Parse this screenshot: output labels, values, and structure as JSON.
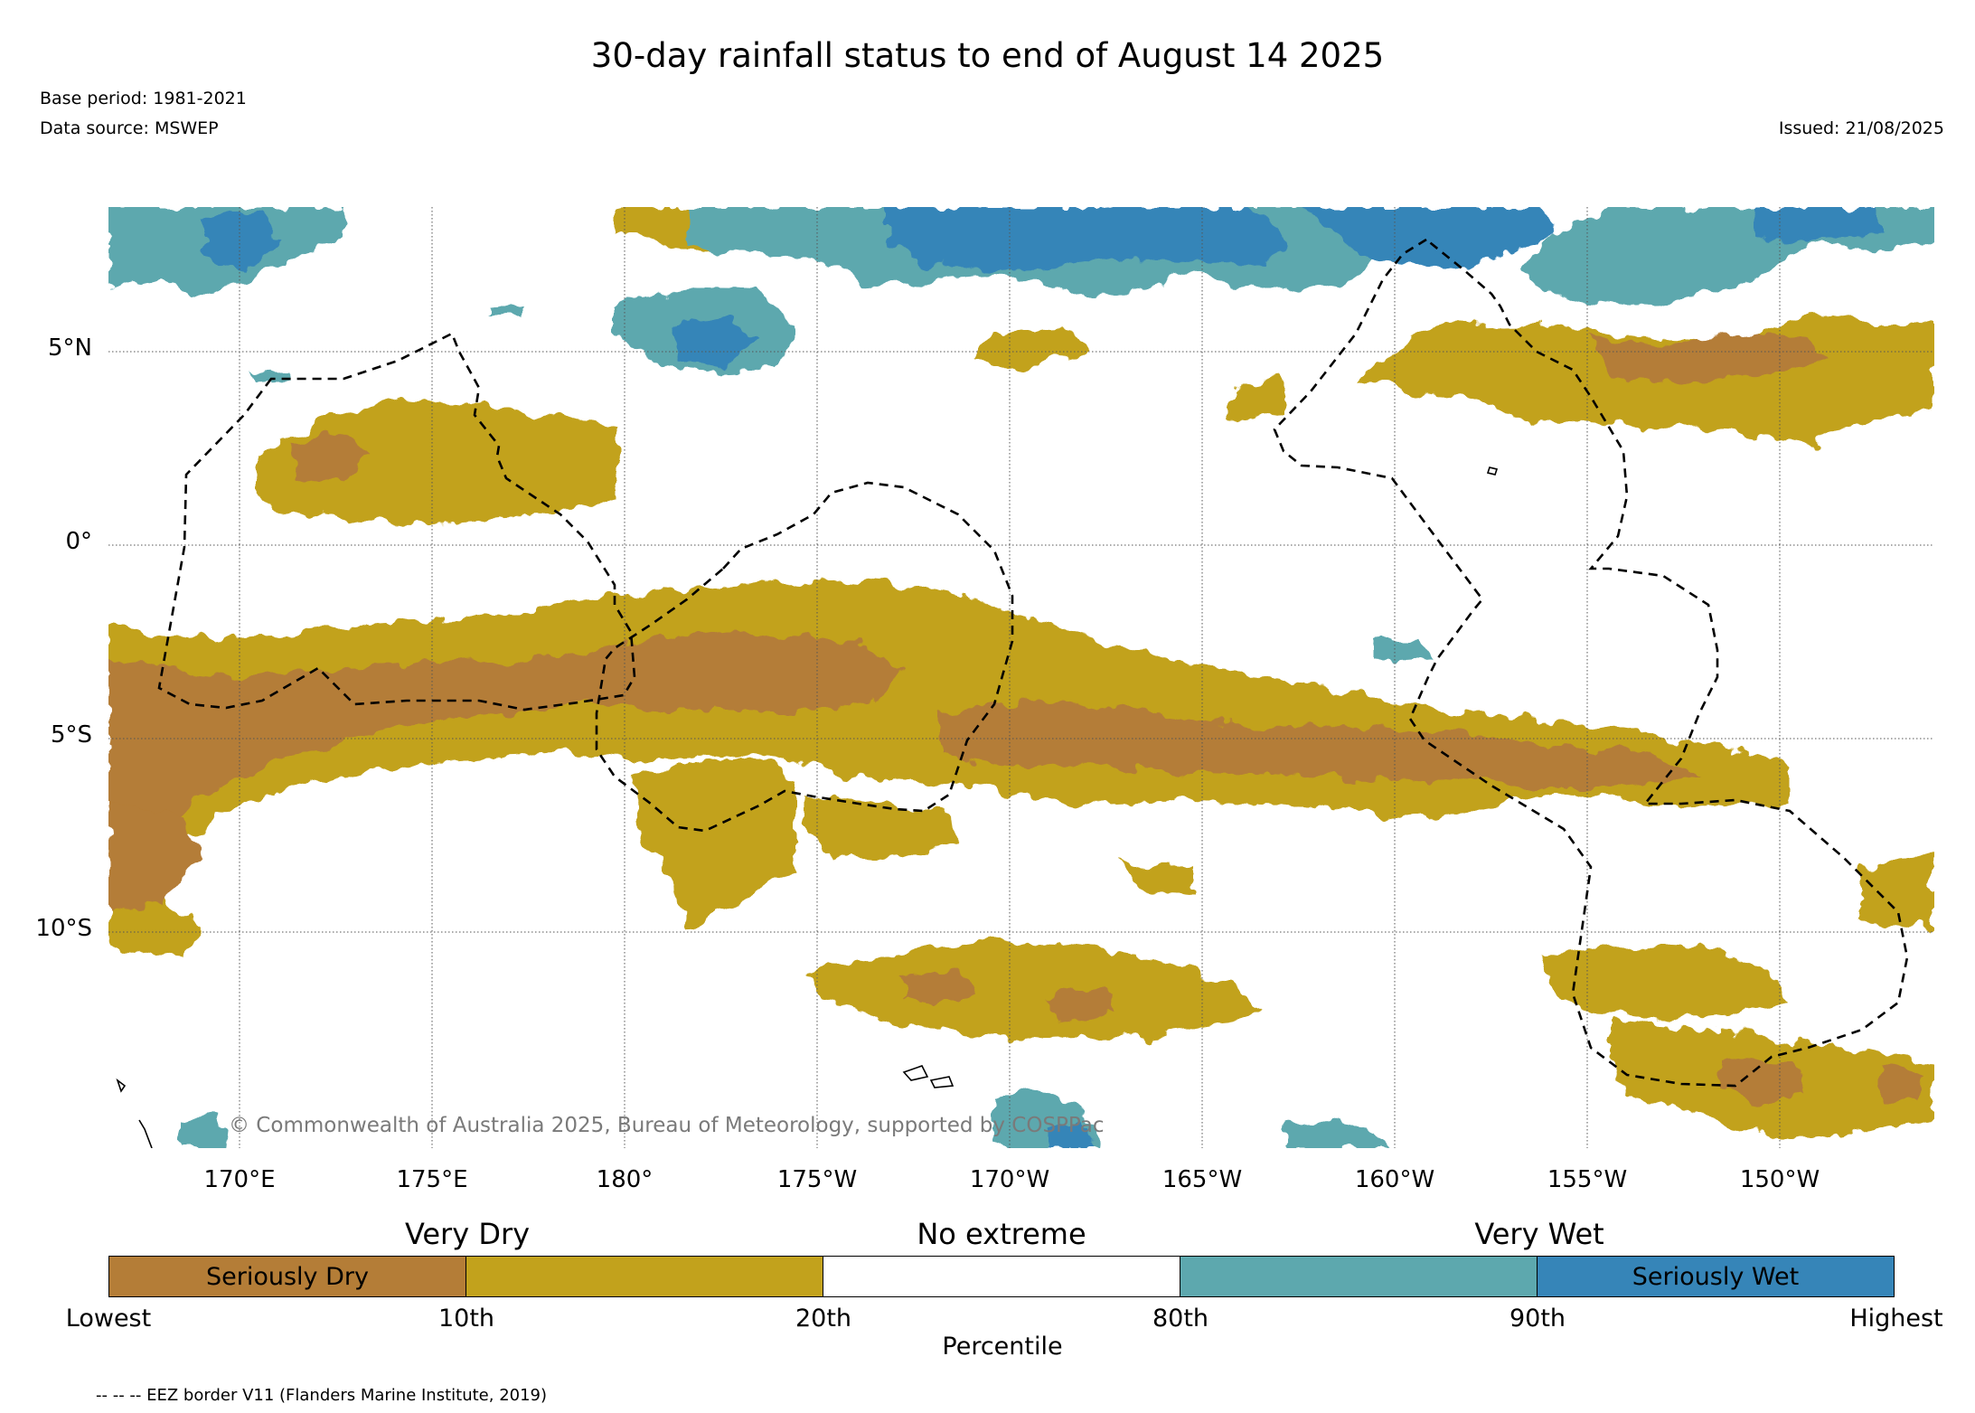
{
  "title": "30-day rainfall status to end of August 14 2025",
  "meta": {
    "base_period": "Base period: 1981-2021",
    "data_source": "Data source: MSWEP",
    "issued": "Issued: 21/08/2025"
  },
  "map": {
    "lat_labels": [
      "5°N",
      "0°",
      "5°S",
      "10°S"
    ],
    "lon_labels": [
      "170°E",
      "175°E",
      "180°",
      "175°W",
      "170°W",
      "165°W",
      "160°W",
      "155°W",
      "150°W"
    ],
    "copyright": "© Commonwealth of Australia 2025, Bureau of Meteorology, supported by COSPPac",
    "colors": {
      "seriously_dry": "#b47d37",
      "very_dry": "#c2a21c",
      "no_extreme": "#ffffff",
      "very_wet": "#5da8ae",
      "seriously_wet": "#3685b8",
      "gridline": "#555555",
      "eez_border": "#000000"
    }
  },
  "legend": {
    "category_headings": [
      "Very Dry",
      "No extreme",
      "Very Wet"
    ],
    "segments": [
      {
        "label": "Seriously Dry",
        "color": "#b47d37"
      },
      {
        "label": "",
        "color": "#c2a21c"
      },
      {
        "label": "",
        "color": "#ffffff"
      },
      {
        "label": "",
        "color": "#5da8ae"
      },
      {
        "label": "Seriously Wet",
        "color": "#3685b8"
      }
    ],
    "tick_labels": [
      "Lowest",
      "10th",
      "20th",
      "80th",
      "90th",
      "Highest"
    ],
    "axis_label": "Percentile"
  },
  "eez_note": "-- -- -- EEZ border V11 (Flanders Marine Institute, 2019)"
}
